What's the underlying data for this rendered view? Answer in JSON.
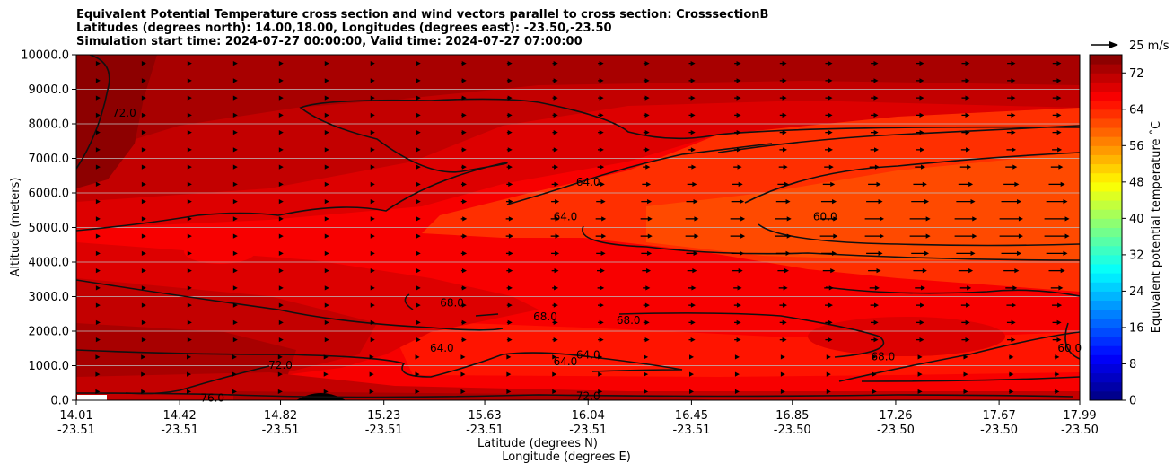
{
  "title_lines": [
    "Equivalent Potential Temperature cross section and wind vectors parallel to cross section: CrosssectionB",
    "Latitudes (degrees north): 14.00,18.00, Longitudes (degrees east): -23.50,-23.50",
    "Simulation start time: 2024-07-27 00:00:00, Valid time: 2024-07-27 07:00:00"
  ],
  "quiver_key": {
    "label": "25 m/s",
    "speed": 25
  },
  "chart_data": {
    "type": "contourf",
    "title": "Equivalent Potential Temperature cross section and wind vectors parallel to cross section: CrosssectionB",
    "xlabel_lines": [
      "Latitude (degrees N)",
      "Longitude (degrees E)"
    ],
    "ylabel": "Altitude (meters)",
    "ylim": [
      0,
      10000
    ],
    "yticks": [
      "0.0",
      "1000.0",
      "2000.0",
      "3000.0",
      "4000.0",
      "5000.0",
      "6000.0",
      "7000.0",
      "8000.0",
      "9000.0",
      "10000.0"
    ],
    "xticks": [
      {
        "lat": "14.01",
        "lon": "-23.51"
      },
      {
        "lat": "14.42",
        "lon": "-23.51"
      },
      {
        "lat": "14.82",
        "lon": "-23.51"
      },
      {
        "lat": "15.23",
        "lon": "-23.51"
      },
      {
        "lat": "15.63",
        "lon": "-23.51"
      },
      {
        "lat": "16.04",
        "lon": "-23.51"
      },
      {
        "lat": "16.45",
        "lon": "-23.51"
      },
      {
        "lat": "16.85",
        "lon": "-23.50"
      },
      {
        "lat": "17.26",
        "lon": "-23.50"
      },
      {
        "lat": "17.67",
        "lon": "-23.50"
      },
      {
        "lat": "17.99",
        "lon": "-23.50"
      }
    ],
    "grid": "horizontal",
    "colorbar": {
      "label": "Equivalent potential temperature ˚C",
      "min": 0,
      "max": 76,
      "step": 2,
      "tick_labels": [
        "0",
        "8",
        "16",
        "24",
        "32",
        "40",
        "48",
        "56",
        "64",
        "72"
      ],
      "colormap": "jet"
    },
    "contour_labels": [
      {
        "text": "72.0",
        "lat": 14.2,
        "alt": 8300
      },
      {
        "text": "64.0",
        "lat": 16.04,
        "alt": 6300
      },
      {
        "text": "64.0",
        "lat": 15.95,
        "alt": 5300
      },
      {
        "text": "60.0",
        "lat": 16.98,
        "alt": 5300
      },
      {
        "text": "68.0",
        "lat": 15.5,
        "alt": 2800
      },
      {
        "text": "68.0",
        "lat": 15.87,
        "alt": 2400
      },
      {
        "text": "68.0",
        "lat": 16.2,
        "alt": 2300
      },
      {
        "text": "64.0",
        "lat": 15.46,
        "alt": 1500
      },
      {
        "text": "64.0",
        "lat": 15.95,
        "alt": 1100
      },
      {
        "text": "64.0",
        "lat": 16.04,
        "alt": 1300
      },
      {
        "text": "68.0",
        "lat": 17.21,
        "alt": 1250
      },
      {
        "text": "60.0",
        "lat": 17.95,
        "alt": 1500
      },
      {
        "text": "72.0",
        "lat": 14.82,
        "alt": 1000
      },
      {
        "text": "72.0",
        "lat": 16.04,
        "alt": 100
      },
      {
        "text": "76.0",
        "lat": 14.55,
        "alt": 50
      }
    ]
  },
  "colors": {
    "line": "#111111",
    "grid": "#bfbfbf"
  }
}
